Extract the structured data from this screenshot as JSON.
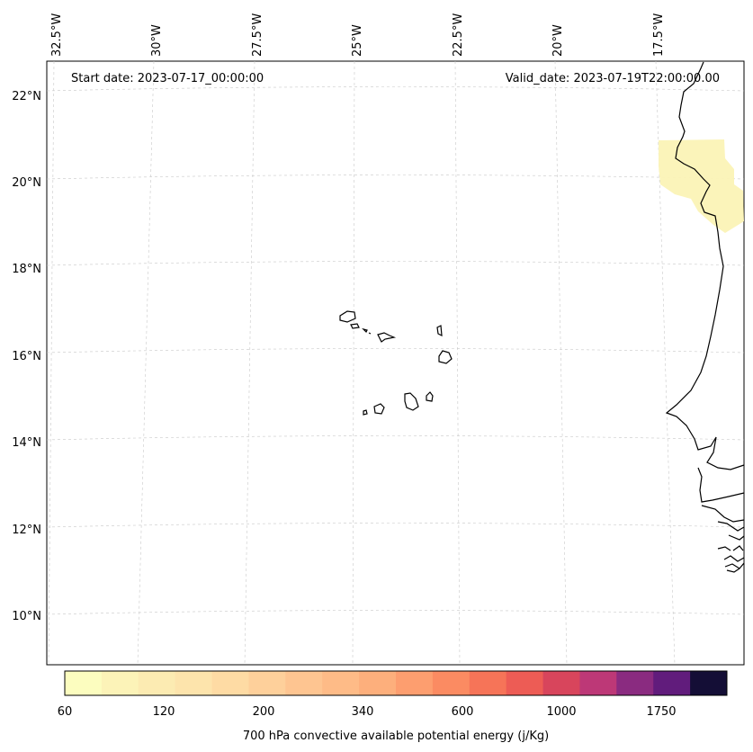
{
  "map": {
    "start_date": "Start date: 2023-07-17_00:00:00",
    "valid_date": "Valid_date: 2023-07-19T22:00:00.00",
    "lon_labels": [
      "32.5°W",
      "30°W",
      "27.5°W",
      "25°W",
      "22.5°W",
      "20°W",
      "17.5°W"
    ],
    "lat_labels": [
      "22°N",
      "20°N",
      "18°N",
      "16°N",
      "14°N",
      "12°N",
      "10°N"
    ]
  },
  "colorbar": {
    "label": "700 hPa convective available potential energy (j/Kg)",
    "tick_labels": [
      "60",
      "120",
      "200",
      "340",
      "600",
      "1000",
      "1750"
    ],
    "colors": [
      "#fcfdbf",
      "#fcf3b8",
      "#fcebb2",
      "#fde4ac",
      "#fedba4",
      "#fed09b",
      "#fec591",
      "#febb87",
      "#fdaf7c",
      "#fd9e6f",
      "#fb8b62",
      "#f67458",
      "#ed5c55",
      "#d8455c",
      "#bd3877",
      "#8a2b80",
      "#611c7c",
      "#140e36"
    ]
  },
  "field": {
    "color": "#fbf3b6"
  }
}
